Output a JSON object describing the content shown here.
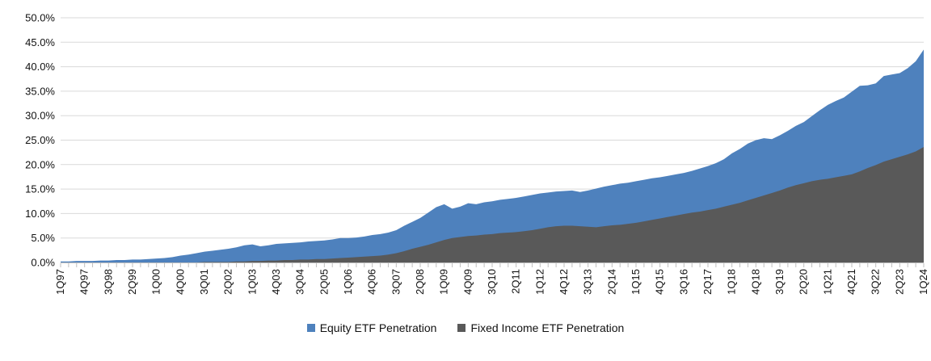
{
  "chart_data": {
    "type": "area",
    "overlapping_series": true,
    "title": "",
    "xlabel": "",
    "ylabel": "",
    "ylim": [
      0,
      50
    ],
    "y_ticks": [
      "0.0%",
      "5.0%",
      "10.0%",
      "15.0%",
      "20.0%",
      "25.0%",
      "30.0%",
      "35.0%",
      "40.0%",
      "45.0%",
      "50.0%"
    ],
    "x_label_every": 3,
    "grid": "horizontal",
    "gridline_color": "#D9D9D9",
    "axis_color": "#BFBFBF",
    "legend_position": "bottom",
    "categories": [
      "1Q97",
      "2Q97",
      "3Q97",
      "4Q97",
      "1Q98",
      "2Q98",
      "3Q98",
      "4Q98",
      "1Q99",
      "2Q99",
      "3Q99",
      "4Q99",
      "1Q00",
      "2Q00",
      "3Q00",
      "4Q00",
      "1Q01",
      "2Q01",
      "3Q01",
      "4Q01",
      "1Q02",
      "2Q02",
      "3Q02",
      "4Q02",
      "1Q03",
      "2Q03",
      "3Q03",
      "4Q03",
      "1Q04",
      "2Q04",
      "3Q04",
      "4Q04",
      "1Q05",
      "2Q05",
      "3Q05",
      "4Q05",
      "1Q06",
      "2Q06",
      "3Q06",
      "4Q06",
      "1Q07",
      "2Q07",
      "3Q07",
      "4Q07",
      "1Q08",
      "2Q08",
      "3Q08",
      "4Q08",
      "1Q09",
      "2Q09",
      "3Q09",
      "4Q09",
      "1Q10",
      "2Q10",
      "3Q10",
      "4Q10",
      "1Q11",
      "2Q11",
      "3Q11",
      "4Q11",
      "1Q12",
      "2Q12",
      "3Q12",
      "4Q12",
      "1Q13",
      "2Q13",
      "3Q13",
      "4Q13",
      "1Q14",
      "2Q14",
      "3Q14",
      "4Q14",
      "1Q15",
      "2Q15",
      "3Q15",
      "4Q15",
      "1Q16",
      "2Q16",
      "3Q16",
      "4Q16",
      "1Q17",
      "2Q17",
      "3Q17",
      "4Q17",
      "1Q18",
      "2Q18",
      "3Q18",
      "4Q18",
      "1Q19",
      "2Q19",
      "3Q19",
      "4Q19",
      "1Q20",
      "2Q20",
      "3Q20",
      "4Q20",
      "1Q21",
      "2Q21",
      "3Q21",
      "4Q21",
      "1Q22",
      "2Q22",
      "3Q22",
      "4Q22",
      "1Q23",
      "2Q23",
      "3Q23",
      "4Q23",
      "1Q24"
    ],
    "series": [
      {
        "name": "Equity ETF Penetration",
        "color": "#4E81BD",
        "values": [
          0.2,
          0.2,
          0.3,
          0.3,
          0.3,
          0.4,
          0.4,
          0.5,
          0.5,
          0.6,
          0.6,
          0.7,
          0.8,
          0.9,
          1.1,
          1.4,
          1.6,
          1.9,
          2.2,
          2.4,
          2.6,
          2.8,
          3.1,
          3.5,
          3.7,
          3.3,
          3.5,
          3.8,
          3.9,
          4.0,
          4.1,
          4.3,
          4.4,
          4.5,
          4.7,
          5.0,
          5.0,
          5.1,
          5.3,
          5.6,
          5.8,
          6.1,
          6.6,
          7.5,
          8.3,
          9.1,
          10.2,
          11.3,
          11.9,
          11.0,
          11.4,
          12.1,
          11.9,
          12.3,
          12.5,
          12.8,
          13.0,
          13.2,
          13.5,
          13.8,
          14.1,
          14.3,
          14.5,
          14.6,
          14.7,
          14.4,
          14.7,
          15.1,
          15.5,
          15.8,
          16.1,
          16.3,
          16.6,
          16.9,
          17.2,
          17.4,
          17.7,
          18.0,
          18.3,
          18.7,
          19.2,
          19.7,
          20.3,
          21.1,
          22.3,
          23.2,
          24.3,
          25.0,
          25.4,
          25.2,
          26.0,
          26.9,
          27.9,
          28.7,
          29.9,
          31.1,
          32.2,
          33.0,
          33.7,
          34.9,
          36.1,
          36.2,
          36.6,
          38.1,
          38.4,
          38.7,
          39.7,
          41.1,
          43.5
        ]
      },
      {
        "name": "Fixed Income ETF Penetration",
        "color": "#595959",
        "values": [
          0.0,
          0.0,
          0.0,
          0.0,
          0.0,
          0.0,
          0.0,
          0.0,
          0.0,
          0.0,
          0.0,
          0.0,
          0.0,
          0.0,
          0.0,
          0.0,
          0.0,
          0.0,
          0.1,
          0.1,
          0.1,
          0.1,
          0.2,
          0.2,
          0.3,
          0.3,
          0.4,
          0.4,
          0.5,
          0.5,
          0.6,
          0.6,
          0.7,
          0.7,
          0.8,
          0.9,
          1.0,
          1.1,
          1.2,
          1.3,
          1.4,
          1.6,
          1.9,
          2.3,
          2.8,
          3.2,
          3.6,
          4.1,
          4.6,
          5.0,
          5.2,
          5.4,
          5.5,
          5.7,
          5.8,
          6.0,
          6.1,
          6.2,
          6.4,
          6.6,
          6.9,
          7.2,
          7.4,
          7.5,
          7.5,
          7.4,
          7.3,
          7.2,
          7.4,
          7.6,
          7.7,
          7.9,
          8.1,
          8.4,
          8.7,
          9.0,
          9.3,
          9.6,
          9.9,
          10.2,
          10.4,
          10.7,
          11.0,
          11.4,
          11.8,
          12.2,
          12.7,
          13.2,
          13.7,
          14.2,
          14.7,
          15.3,
          15.8,
          16.2,
          16.6,
          16.9,
          17.1,
          17.4,
          17.7,
          18.0,
          18.6,
          19.3,
          19.9,
          20.6,
          21.1,
          21.6,
          22.1,
          22.7,
          23.6
        ]
      }
    ]
  }
}
